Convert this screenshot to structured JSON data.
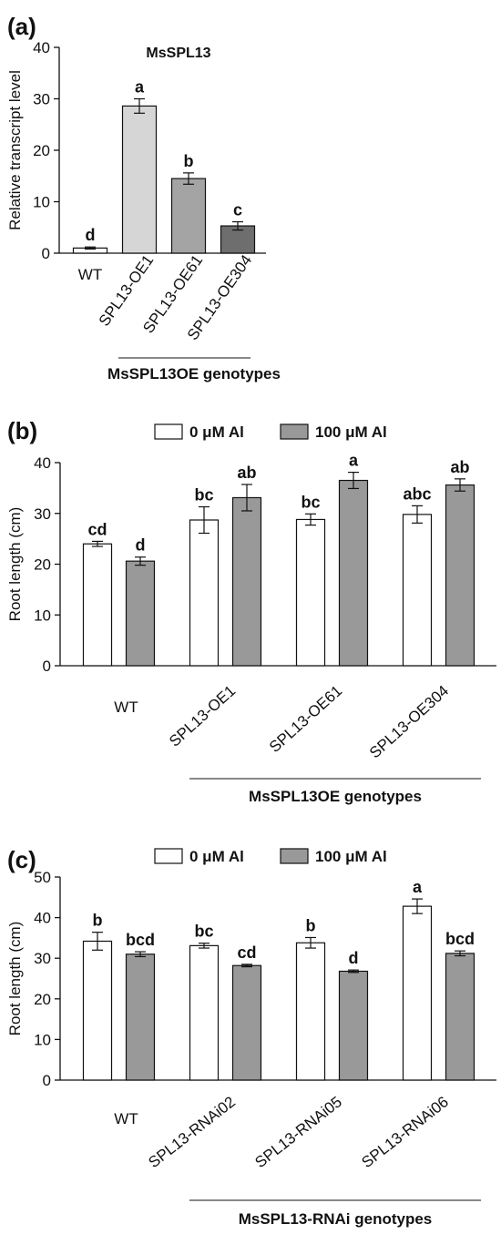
{
  "chart_data": [
    {
      "panel": "(a)",
      "type": "bar",
      "title": "MsSPL13",
      "ylabel": "Relative transcript level",
      "xlabel": "MsSPL13OE genotypes",
      "ylim": [
        0,
        40
      ],
      "yticks": [
        0,
        10,
        20,
        30,
        40
      ],
      "categories": [
        "WT",
        "SPL13-OE1",
        "SPL13-OE61",
        "SPL13-OE304"
      ],
      "series": [
        {
          "values": [
            1.0,
            28.6,
            14.5,
            5.3
          ],
          "errors": [
            0.2,
            1.4,
            1.1,
            0.8
          ],
          "letters": [
            "d",
            "a",
            "b",
            "c"
          ],
          "colors": [
            "#ffffff",
            "#d6d6d6",
            "#a4a4a4",
            "#6e6e6e"
          ]
        }
      ]
    },
    {
      "panel": "(b)",
      "type": "bar",
      "ylabel": "Root length (cm)",
      "xlabel": "MsSPL13OE genotypes",
      "ylim": [
        0,
        40
      ],
      "yticks": [
        0,
        10,
        20,
        30,
        40
      ],
      "categories": [
        "WT",
        "SPL13-OE1",
        "SPL13-OE61",
        "SPL13-OE304"
      ],
      "legend": "top",
      "series": [
        {
          "name": "0 μM Al",
          "color": "#ffffff",
          "values": [
            24.0,
            28.7,
            28.8,
            29.8
          ],
          "errors": [
            0.5,
            2.6,
            1.1,
            1.7
          ],
          "letters": [
            "cd",
            "bc",
            "bc",
            "abc"
          ]
        },
        {
          "name": "100 μM Al",
          "color": "#999999",
          "values": [
            20.6,
            33.1,
            36.5,
            35.6
          ],
          "errors": [
            0.8,
            2.6,
            1.6,
            1.2
          ],
          "letters": [
            "d",
            "ab",
            "a",
            "ab"
          ]
        }
      ]
    },
    {
      "panel": "(c)",
      "type": "bar",
      "ylabel": "Root length (cm)",
      "xlabel": "MsSPL13-RNAi genotypes",
      "ylim": [
        0,
        50
      ],
      "yticks": [
        0,
        10,
        20,
        30,
        40,
        50
      ],
      "categories": [
        "WT",
        "SPL13-RNAi02",
        "SPL13-RNAi05",
        "SPL13-RNAi06"
      ],
      "legend": "top",
      "series": [
        {
          "name": "0 μM Al",
          "color": "#ffffff",
          "values": [
            34.2,
            33.1,
            33.8,
            42.8
          ],
          "errors": [
            2.2,
            0.6,
            1.3,
            1.8
          ],
          "letters": [
            "b",
            "bc",
            "b",
            "a"
          ]
        },
        {
          "name": "100 μM Al",
          "color": "#999999",
          "values": [
            31.0,
            28.2,
            26.8,
            31.2
          ],
          "errors": [
            0.6,
            0.3,
            0.3,
            0.6
          ],
          "letters": [
            "bcd",
            "cd",
            "d",
            "bcd"
          ]
        }
      ]
    }
  ]
}
